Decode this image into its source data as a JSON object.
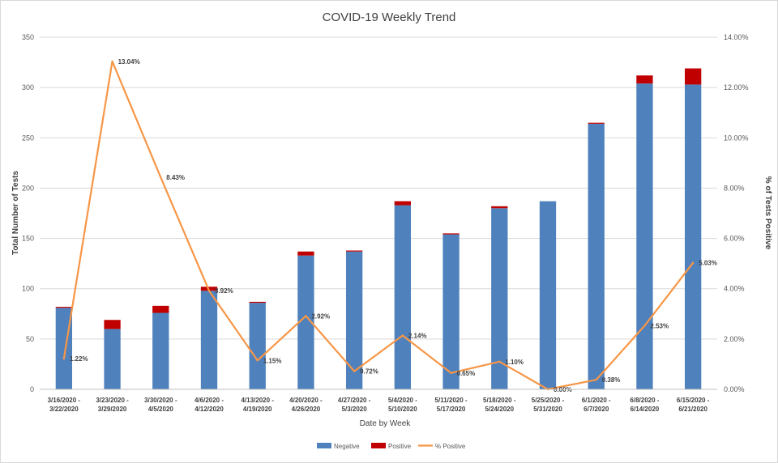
{
  "chart_data": {
    "type": "bar",
    "title": "COVID-19 Weekly Trend",
    "xlabel": "Date by Week",
    "ylabel": "Total Number of Tests",
    "y2label": "% of Tests Positive",
    "ylim": [
      0,
      350
    ],
    "y_ticks": [
      0,
      50,
      100,
      150,
      200,
      250,
      300,
      350
    ],
    "y2lim": [
      0,
      14
    ],
    "y2_ticks": [
      "0.00%",
      "2.00%",
      "4.00%",
      "6.00%",
      "8.00%",
      "10.00%",
      "12.00%",
      "14.00%"
    ],
    "grid": true,
    "legend_position": "bottom",
    "categories": [
      [
        "3/16/2020 -",
        "3/22/2020"
      ],
      [
        "3/23/2020 -",
        "3/29/2020"
      ],
      [
        "3/30/2020 -",
        "4/5/2020"
      ],
      [
        "4/6/2020 -",
        "4/12/2020"
      ],
      [
        "4/13/2020 -",
        "4/19/2020"
      ],
      [
        "4/20/2020 -",
        "4/26/2020"
      ],
      [
        "4/27/2020 -",
        "5/3/2020"
      ],
      [
        "5/4/2020 -",
        "5/10/2020"
      ],
      [
        "5/11/2020 -",
        "5/17/2020"
      ],
      [
        "5/18/2020 -",
        "5/24/2020"
      ],
      [
        "5/25/2020 -",
        "5/31/2020"
      ],
      [
        "6/1/2020 -",
        "6/7/2020"
      ],
      [
        "6/8/2020 -",
        "6/14/2020"
      ],
      [
        "6/15/2020 -",
        "6/21/2020"
      ]
    ],
    "series": [
      {
        "name": "Negative",
        "type": "stacked-bar",
        "color": "#4f81bd",
        "values": [
          81,
          60,
          76,
          98,
          86,
          133,
          137,
          183,
          154,
          180,
          187,
          264,
          304,
          303
        ]
      },
      {
        "name": "Positive",
        "type": "stacked-bar",
        "color": "#c00000",
        "values": [
          1,
          9,
          7,
          4,
          1,
          4,
          1,
          4,
          1,
          2,
          0,
          1,
          8,
          16
        ]
      },
      {
        "name": "% Positive",
        "type": "line",
        "axis": "secondary",
        "color": "#f79646",
        "values": [
          1.22,
          13.04,
          8.43,
          3.92,
          1.15,
          2.92,
          0.72,
          2.14,
          0.65,
          1.1,
          0.0,
          0.38,
          2.53,
          5.03
        ],
        "labels": [
          "1.22%",
          "13.04%",
          "8.43%",
          "3.92%",
          "1.15%",
          "2.92%",
          "0.72%",
          "2.14%",
          "0.65%",
          "1.10%",
          "0.00%",
          "0.38%",
          "2.53%",
          "5.03%"
        ]
      }
    ]
  }
}
